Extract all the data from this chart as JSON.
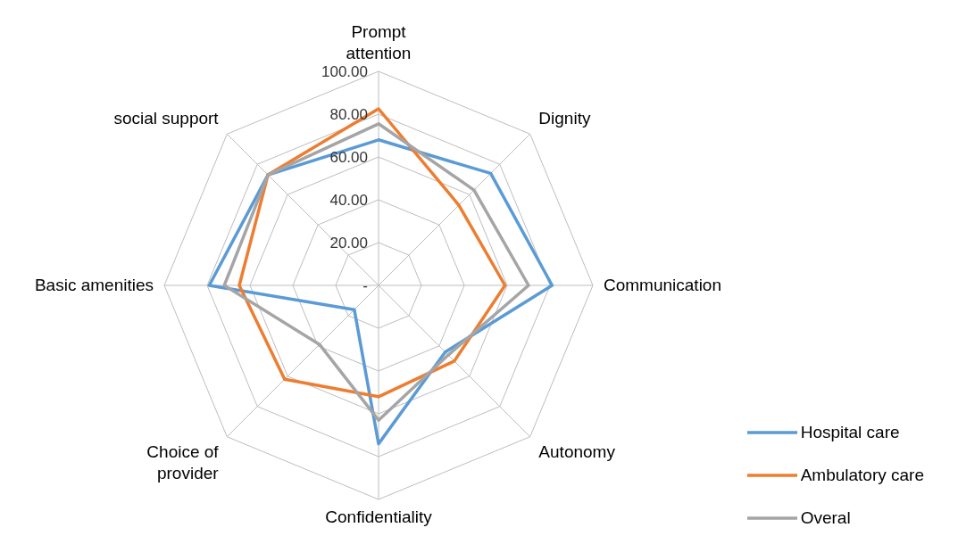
{
  "chart_data": {
    "type": "radar",
    "categories": [
      "Prompt attention",
      "Dignity",
      "Communication",
      "Autonomy",
      "Confidentiality",
      "Choice of provider",
      "Basic amenities",
      "social support"
    ],
    "series": [
      {
        "name": "Hospital care",
        "color": "#5b9bd5",
        "values": [
          68,
          74,
          81,
          44,
          74,
          16,
          79,
          73
        ]
      },
      {
        "name": "Ambulatory care",
        "color": "#ed7d31",
        "values": [
          82.5,
          53,
          59,
          50,
          52,
          62,
          65,
          73
        ]
      },
      {
        "name": "Overal",
        "color": "#a5a5a5",
        "values": [
          75.5,
          63,
          70,
          46,
          63,
          39,
          72,
          73
        ]
      }
    ],
    "ylim": [
      0,
      100
    ],
    "yticks": [
      {
        "value": 0,
        "label": "-"
      },
      {
        "value": 20,
        "label": "20.00"
      },
      {
        "value": 40,
        "label": "40.00"
      },
      {
        "value": 60,
        "label": "60.00"
      },
      {
        "value": 80,
        "label": "80.00"
      },
      {
        "value": 100,
        "label": "100.00"
      }
    ],
    "grid": true,
    "legend": "bottom right",
    "marker": "none",
    "line_style": "solid"
  }
}
